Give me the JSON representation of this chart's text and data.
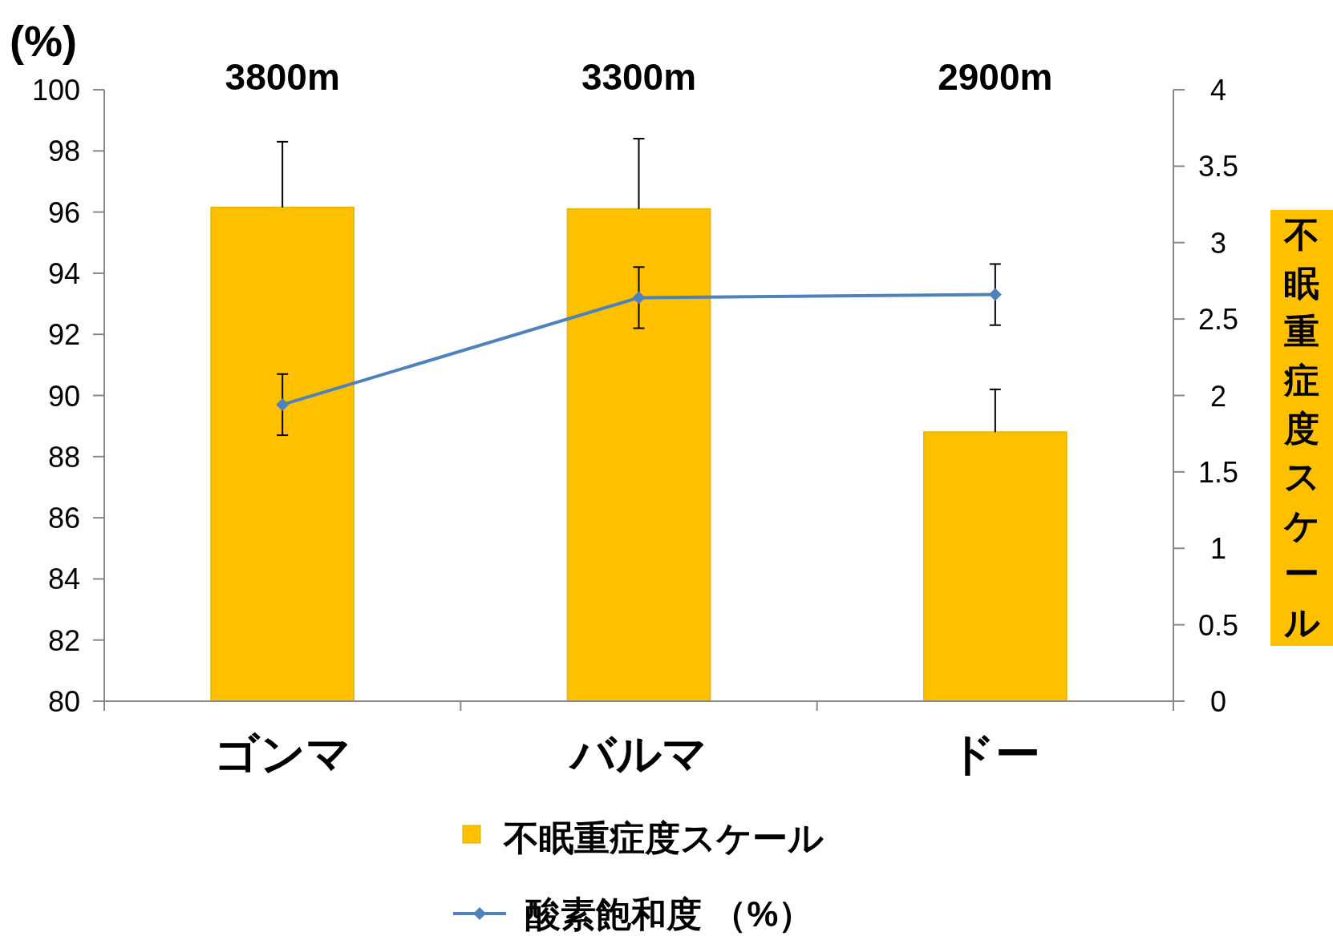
{
  "chart_data": {
    "type": "bar",
    "categories": [
      "ゴンマ",
      "バルマ",
      "ドー"
    ],
    "ylabel": "(%)",
    "y2label": "不眠重症度スケール",
    "ylim": [
      80,
      100
    ],
    "yticks": [
      80,
      82,
      84,
      86,
      88,
      90,
      92,
      94,
      96,
      98,
      100
    ],
    "y2lim": [
      0,
      4
    ],
    "y2ticks": [
      0,
      0.5,
      1,
      1.5,
      2,
      2.5,
      3,
      3.5,
      4
    ],
    "series": [
      {
        "name": "不眠重症度スケール",
        "axis": "y2",
        "color": "#ffc000",
        "values": [
          3.23,
          3.22,
          1.76
        ],
        "errors": [
          [
            3.23,
            3.66
          ],
          [
            3.22,
            3.68
          ],
          [
            1.76,
            2.04
          ]
        ]
      },
      {
        "name": "酸素飽和度 （%）",
        "type": "line",
        "axis": "y",
        "color": "#4f81bd",
        "marker": "diamond",
        "values": [
          89.7,
          93.2,
          93.3
        ],
        "errors": [
          1.0,
          1.0,
          1.0
        ]
      }
    ],
    "annotations": [
      "3800m",
      "3300m",
      "2900m"
    ],
    "legend": "bottom",
    "grid": false
  }
}
